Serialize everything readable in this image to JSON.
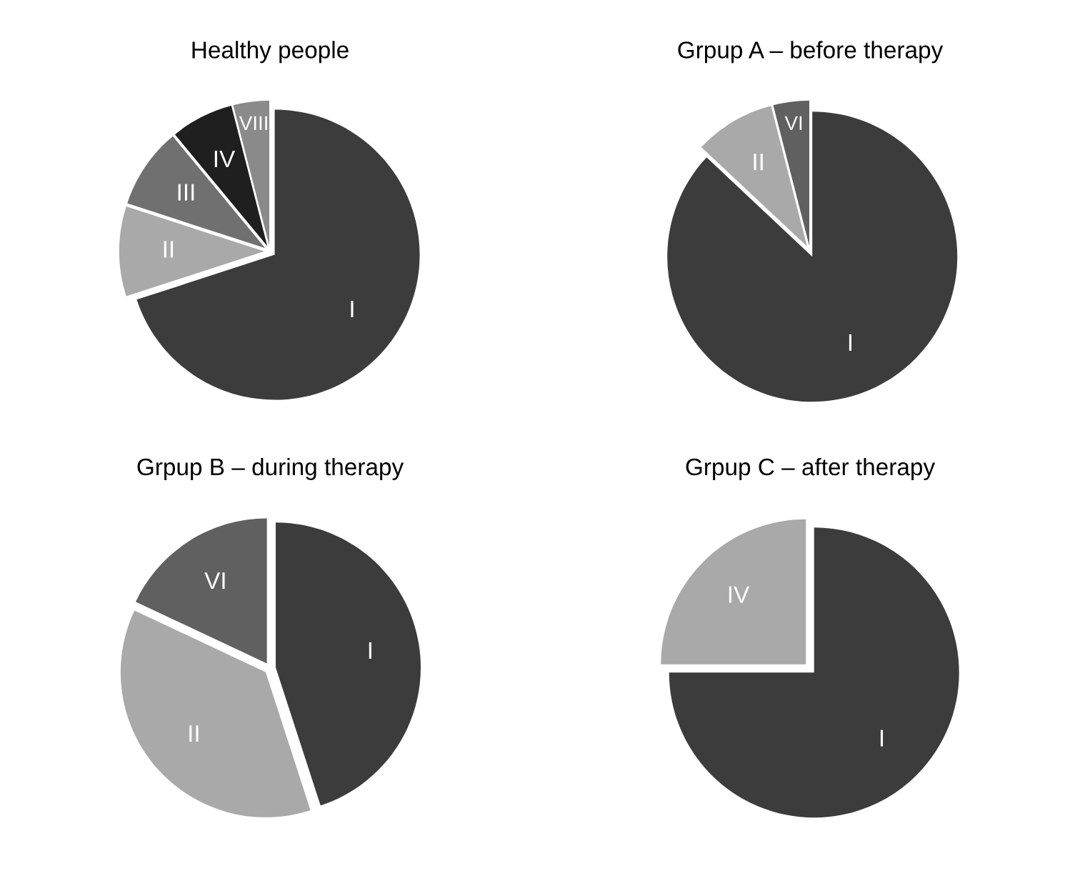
{
  "chart_data": [
    {
      "type": "pie",
      "title": "Healthy people",
      "categories": [
        "I",
        "II",
        "III",
        "IV",
        "VIII"
      ],
      "values": [
        70,
        10,
        9,
        7,
        4
      ],
      "colors": [
        "#3c3c3c",
        "#a9a9a9",
        "#707070",
        "#1f1f1f",
        "#8a8a8a"
      ]
    },
    {
      "type": "pie",
      "title": "Grpup A – before therapy",
      "categories": [
        "I",
        "II",
        "VI"
      ],
      "values": [
        87,
        9,
        4
      ],
      "colors": [
        "#3c3c3c",
        "#a9a9a9",
        "#606060"
      ]
    },
    {
      "type": "pie",
      "title": "Grpup B – during therapy",
      "categories": [
        "I",
        "II",
        "VI"
      ],
      "values": [
        45,
        37,
        18
      ],
      "colors": [
        "#3c3c3c",
        "#a9a9a9",
        "#606060"
      ]
    },
    {
      "type": "pie",
      "title": "Grpup C – after therapy",
      "categories": [
        "I",
        "IV"
      ],
      "values": [
        75,
        25
      ],
      "colors": [
        "#3c3c3c",
        "#a9a9a9"
      ]
    }
  ]
}
